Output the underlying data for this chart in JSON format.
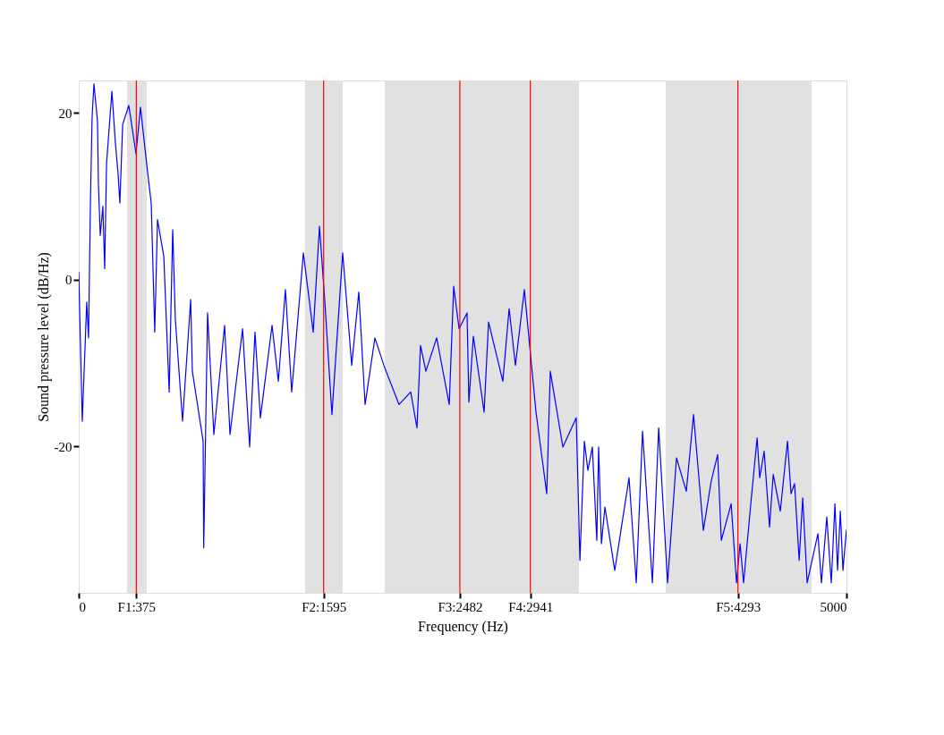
{
  "chart_data": {
    "type": "line",
    "xlabel": "Frequency (Hz)",
    "ylabel": "Sound pressure level (dB/Hz)",
    "xlim": [
      0,
      5000
    ],
    "ylim": [
      -37.6,
      23.9
    ],
    "xticks": [
      0,
      {
        "value": 375,
        "label": "F1:375"
      },
      {
        "value": 1595,
        "label": "F2:1595"
      },
      {
        "value": 2482,
        "label": "F3:2482"
      },
      {
        "value": 2941,
        "label": "F4:2941"
      },
      {
        "value": 4293,
        "label": "F5:4293"
      },
      5000
    ],
    "yticks": [
      -20,
      0,
      20
    ],
    "grid": false,
    "marker": "none",
    "line_style": "solid",
    "bands": [
      {
        "axis": "x",
        "from": 315,
        "to": 443,
        "color": "#e1e1e1"
      },
      {
        "axis": "x",
        "from": 1474,
        "to": 1719,
        "color": "#e1e1e1"
      },
      {
        "axis": "x",
        "from": 1993,
        "to": 3258,
        "color": "#e1e1e1"
      },
      {
        "axis": "x",
        "from": 3823,
        "to": 4773,
        "color": "#e1e1e1"
      }
    ],
    "ref_lines": [
      {
        "axis": "x",
        "value": 375,
        "color": "#ff0000"
      },
      {
        "axis": "x",
        "value": 1595,
        "color": "#ff0000"
      },
      {
        "axis": "x",
        "value": 2482,
        "color": "#ff0000"
      },
      {
        "axis": "x",
        "value": 2941,
        "color": "#ff0000"
      },
      {
        "axis": "x",
        "value": 4293,
        "color": "#ff0000"
      }
    ],
    "series": [
      {
        "color": "#0000ff",
        "x": [
          0,
          23,
          52,
          64,
          76,
          87,
          99,
          122,
          128,
          140,
          157,
          169,
          181,
          216,
          239,
          256,
          268,
          286,
          326,
          373,
          402,
          449,
          472,
          495,
          513,
          554,
          589,
          612,
          629,
          676,
          729,
          740,
          810,
          814,
          839,
          880,
          950,
          985,
          1067,
          1113,
          1148,
          1183,
          1259,
          1300,
          1346,
          1387,
          1463,
          1527,
          1568,
          1603,
          1649,
          1719,
          1778,
          1824,
          1865,
          1929,
          1987,
          2086,
          2162,
          2203,
          2226,
          2261,
          2331,
          2413,
          2442,
          2477,
          2529,
          2541,
          2570,
          2640,
          2669,
          2762,
          2803,
          2844,
          2902,
          2978,
          3048,
          3071,
          3153,
          3240,
          3264,
          3293,
          3316,
          3345,
          3374,
          3386,
          3404,
          3427,
          3491,
          3584,
          3631,
          3672,
          3736,
          3777,
          3835,
          3893,
          3957,
          4004,
          4068,
          4119,
          4161,
          4185,
          4249,
          4284,
          4307,
          4330,
          4377,
          4418,
          4435,
          4464,
          4499,
          4523,
          4569,
          4616,
          4639,
          4662,
          4692,
          4715,
          4744,
          4814,
          4837,
          4872,
          4901,
          4925,
          4942,
          4960,
          4977,
          5000
        ],
        "values": [
          0.9,
          -17,
          -2.7,
          -7,
          9.2,
          19.5,
          23.5,
          19,
          11.6,
          5.3,
          8.8,
          1.3,
          13.9,
          22.6,
          16.3,
          12.8,
          9.2,
          18.6,
          20.9,
          15.1,
          20.7,
          12.8,
          9.2,
          -6.3,
          7.2,
          2.8,
          -13.5,
          6,
          -4.7,
          -17,
          -2.4,
          -11,
          -19.4,
          -32.2,
          -4,
          -18.6,
          -5.5,
          -18.6,
          -5.9,
          -20.1,
          -6.3,
          -16.6,
          -5.5,
          -12.2,
          -1.2,
          -13.5,
          3.2,
          -6.3,
          6.4,
          -2.7,
          -16.2,
          3.2,
          -10.3,
          -1.5,
          -15,
          -7,
          -10.3,
          -15,
          -13.5,
          -17.8,
          -7.9,
          -11,
          -7,
          -15,
          -0.8,
          -5.9,
          -4,
          -14.7,
          -6.8,
          -15.9,
          -5.1,
          -12.2,
          -3.5,
          -10.3,
          -1.2,
          -15.9,
          -25.7,
          -11,
          -20.1,
          -16.6,
          -33.7,
          -19.4,
          -22.9,
          -20.1,
          -31.3,
          -20.1,
          -31.7,
          -27.3,
          -34.9,
          -23.8,
          -36.4,
          -18.2,
          -36.4,
          -17.8,
          -36.4,
          -21.4,
          -25.4,
          -16.2,
          -30.1,
          -24.2,
          -21,
          -31.3,
          -26.9,
          -36.4,
          -31.7,
          -36.4,
          -26.9,
          -19,
          -23.8,
          -20.6,
          -29.7,
          -23.4,
          -27.8,
          -19.4,
          -25.7,
          -24.5,
          -33.7,
          -26.2,
          -36.4,
          -30.5,
          -36.4,
          -28.5,
          -36.4,
          -26.9,
          -34.9,
          -27.8,
          -34.9,
          -30
        ]
      }
    ]
  }
}
